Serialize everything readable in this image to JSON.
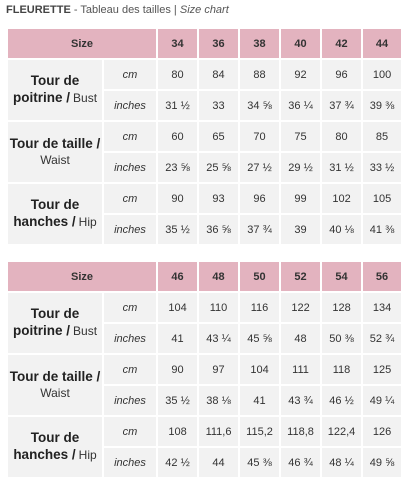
{
  "page_title": {
    "brand": "FLEURETTE",
    "sep": " - ",
    "fr": "Tableau des tailles",
    "bar": " | ",
    "en": "Size chart"
  },
  "tables": [
    {
      "header_label": "Size",
      "sizes": [
        "34",
        "36",
        "38",
        "40",
        "42",
        "44"
      ],
      "groups": [
        {
          "label_fr": "Tour de poitrine /",
          "label_en": "Bust",
          "rows": [
            {
              "unit": "cm",
              "values": [
                "80",
                "84",
                "88",
                "92",
                "96",
                "100"
              ]
            },
            {
              "unit": "inches",
              "values": [
                "31 ½",
                "33",
                "34 ⅝",
                "36 ¼",
                "37 ¾",
                "39 ⅜"
              ]
            }
          ]
        },
        {
          "label_fr": "Tour de taille /",
          "label_en": "Waist",
          "rows": [
            {
              "unit": "cm",
              "values": [
                "60",
                "65",
                "70",
                "75",
                "80",
                "85"
              ]
            },
            {
              "unit": "inches",
              "values": [
                "23 ⅝",
                "25 ⅝",
                "27 ½",
                "29 ½",
                "31 ½",
                "33 ½"
              ]
            }
          ]
        },
        {
          "label_fr": "Tour de hanches /",
          "label_en": "Hip",
          "rows": [
            {
              "unit": "cm",
              "values": [
                "90",
                "93",
                "96",
                "99",
                "102",
                "105"
              ]
            },
            {
              "unit": "inches",
              "values": [
                "35 ½",
                "36 ⅝",
                "37 ¾",
                "39",
                "40 ⅛",
                "41 ⅜"
              ]
            }
          ]
        }
      ]
    },
    {
      "header_label": "Size",
      "sizes": [
        "46",
        "48",
        "50",
        "52",
        "54",
        "56"
      ],
      "groups": [
        {
          "label_fr": "Tour de poitrine /",
          "label_en": "Bust",
          "rows": [
            {
              "unit": "cm",
              "values": [
                "104",
                "110",
                "116",
                "122",
                "128",
                "134"
              ]
            },
            {
              "unit": "inches",
              "values": [
                "41",
                "43 ¼",
                "45 ⅝",
                "48",
                "50 ⅜",
                "52 ¾"
              ]
            }
          ]
        },
        {
          "label_fr": "Tour de taille /",
          "label_en": "Waist",
          "rows": [
            {
              "unit": "cm",
              "values": [
                "90",
                "97",
                "104",
                "111",
                "118",
                "125"
              ]
            },
            {
              "unit": "inches",
              "values": [
                "35 ½",
                "38 ⅛",
                "41",
                "43 ¾",
                "46 ½",
                "49 ¼"
              ]
            }
          ]
        },
        {
          "label_fr": "Tour de hanches /",
          "label_en": "Hip",
          "rows": [
            {
              "unit": "cm",
              "values": [
                "108",
                "111,6",
                "115,2",
                "118,8",
                "122,4",
                "126"
              ]
            },
            {
              "unit": "inches",
              "values": [
                "42 ½",
                "44",
                "45 ⅜",
                "46 ¾",
                "48 ¼",
                "49 ⅝"
              ]
            }
          ]
        }
      ]
    }
  ]
}
